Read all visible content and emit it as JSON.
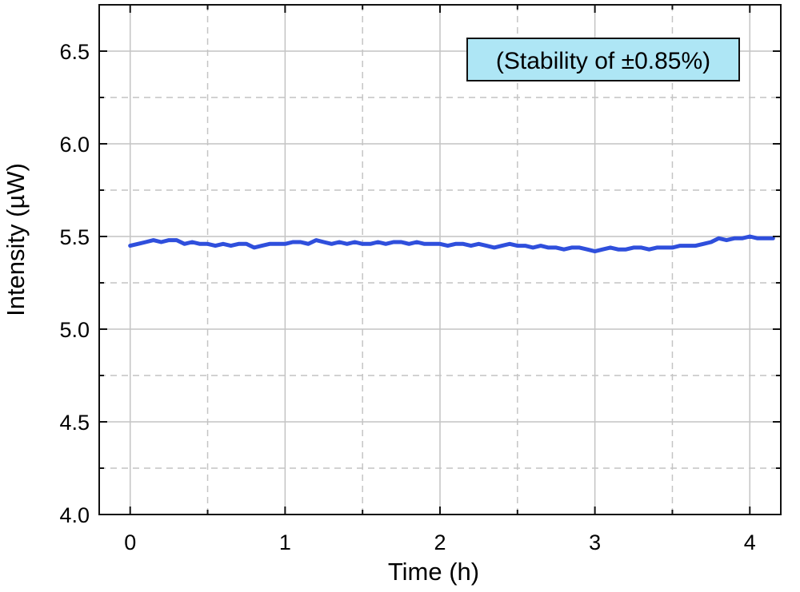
{
  "chart_data": {
    "type": "line",
    "xlabel": "Time (h)",
    "ylabel": "Intensity (µW)",
    "xlim": [
      -0.2,
      4.2
    ],
    "ylim": [
      4.0,
      6.75
    ],
    "x_ticks": [
      "0",
      "1",
      "2",
      "3",
      "4"
    ],
    "y_ticks": [
      "4.0",
      "4.5",
      "5.0",
      "5.5",
      "6.0",
      "6.5"
    ],
    "grid": "on, dashed",
    "annotation": "(Stability of ±0.85%)",
    "colors": {
      "line": "#2f4fdc",
      "annotation_bg": "#aee6f5",
      "grid": "#c4c4c4"
    },
    "series": [
      {
        "x": [
          0,
          0.05,
          0.1,
          0.15,
          0.2,
          0.25,
          0.3,
          0.35,
          0.4,
          0.45,
          0.5,
          0.55,
          0.6,
          0.65,
          0.7,
          0.75,
          0.8,
          0.85,
          0.9,
          0.95,
          1.0,
          1.05,
          1.1,
          1.15,
          1.2,
          1.25,
          1.3,
          1.35,
          1.4,
          1.45,
          1.5,
          1.55,
          1.6,
          1.65,
          1.7,
          1.75,
          1.8,
          1.85,
          1.9,
          1.95,
          2.0,
          2.05,
          2.1,
          2.15,
          2.2,
          2.25,
          2.3,
          2.35,
          2.4,
          2.45,
          2.5,
          2.55,
          2.6,
          2.65,
          2.7,
          2.75,
          2.8,
          2.85,
          2.9,
          2.95,
          3.0,
          3.05,
          3.1,
          3.15,
          3.2,
          3.25,
          3.3,
          3.35,
          3.4,
          3.45,
          3.5,
          3.55,
          3.6,
          3.65,
          3.7,
          3.75,
          3.8,
          3.85,
          3.9,
          3.95,
          4.0,
          4.05,
          4.1,
          4.15
        ],
        "y": [
          5.45,
          5.46,
          5.47,
          5.48,
          5.47,
          5.48,
          5.48,
          5.46,
          5.47,
          5.46,
          5.46,
          5.45,
          5.46,
          5.45,
          5.46,
          5.46,
          5.44,
          5.45,
          5.46,
          5.46,
          5.46,
          5.47,
          5.47,
          5.46,
          5.48,
          5.47,
          5.46,
          5.47,
          5.46,
          5.47,
          5.46,
          5.46,
          5.47,
          5.46,
          5.47,
          5.47,
          5.46,
          5.47,
          5.46,
          5.46,
          5.46,
          5.45,
          5.46,
          5.46,
          5.45,
          5.46,
          5.45,
          5.44,
          5.45,
          5.46,
          5.45,
          5.45,
          5.44,
          5.45,
          5.44,
          5.44,
          5.43,
          5.44,
          5.44,
          5.43,
          5.42,
          5.43,
          5.44,
          5.43,
          5.43,
          5.44,
          5.44,
          5.43,
          5.44,
          5.44,
          5.44,
          5.45,
          5.45,
          5.45,
          5.46,
          5.47,
          5.49,
          5.48,
          5.49,
          5.49,
          5.5,
          5.49,
          5.49,
          5.49
        ]
      }
    ]
  }
}
